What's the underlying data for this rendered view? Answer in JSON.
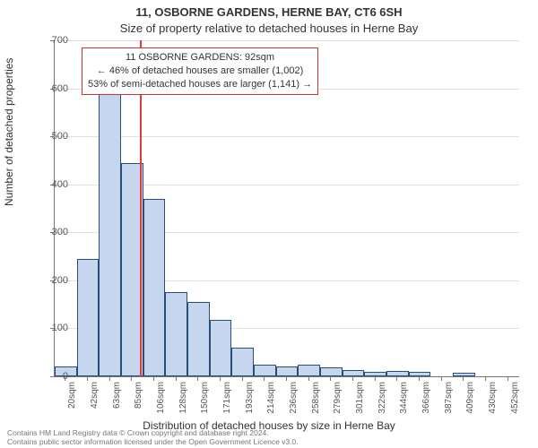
{
  "titles": {
    "line1": "11, OSBORNE GARDENS, HERNE BAY, CT6 6SH",
    "line2": "Size of property relative to detached houses in Herne Bay"
  },
  "axes": {
    "ylabel": "Number of detached properties",
    "xlabel": "Distribution of detached houses by size in Herne Bay",
    "ylim": [
      0,
      700
    ],
    "ytick_step": 100,
    "label_fontsize": 12,
    "tick_fontsize": 11,
    "grid_color": "#e0e0e0",
    "axis_color": "#777777"
  },
  "chart": {
    "type": "histogram",
    "background_color": "#ffffff",
    "bar_fill": "#c6d6ee",
    "bar_border": "#2a4d7a",
    "bar_width_ratio": 1.0,
    "categories": [
      "20sqm",
      "42sqm",
      "63sqm",
      "85sqm",
      "106sqm",
      "128sqm",
      "150sqm",
      "171sqm",
      "193sqm",
      "214sqm",
      "236sqm",
      "258sqm",
      "279sqm",
      "301sqm",
      "322sqm",
      "344sqm",
      "366sqm",
      "387sqm",
      "409sqm",
      "430sqm",
      "452sqm"
    ],
    "values": [
      20,
      245,
      600,
      445,
      370,
      175,
      155,
      118,
      60,
      25,
      20,
      25,
      18,
      14,
      10,
      12,
      10,
      0,
      8,
      0,
      0
    ]
  },
  "reference": {
    "value_sqm": 92,
    "line_color": "#e63a3a",
    "line_width": 2
  },
  "annotation": {
    "border_color": "#cc3333",
    "background_color": "#ffffff",
    "fontsize": 11,
    "line1": "11 OSBORNE GARDENS: 92sqm",
    "line2": "← 46% of detached houses are smaller (1,002)",
    "line3": "53% of semi-detached houses are larger (1,141) →"
  },
  "footer": {
    "line1": "Contains HM Land Registry data © Crown copyright and database right 2024.",
    "line2": "Contains public sector information licensed under the Open Government Licence v3.0."
  }
}
